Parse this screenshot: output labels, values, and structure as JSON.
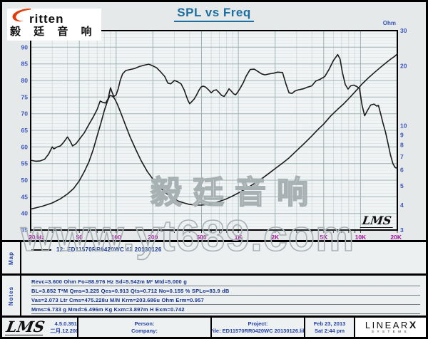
{
  "header": {
    "title": "SPL vs Freq"
  },
  "logo": {
    "brand": "ritten",
    "chinese": "毅 廷 音 响",
    "swoosh_color": "#e03c0c"
  },
  "watermarks": {
    "center": "毅廷音响",
    "bottom": "www.yt689.com"
  },
  "chart_area": {
    "lms_logo": "LMS"
  },
  "map": {
    "label": "Map",
    "legend": "12:  ED11570RR0420WC #2 20130126"
  },
  "notes": {
    "label": "Notes",
    "lines": [
      "Revc=3.600 Ohm  Fo=88.976 Hz  Sd=5.542m M²  Mtd=5.000 g",
      "BL=3.852 T*M  Qms=3.225  Qes=0.913  Qts=0.712  No=0.155 %  SPLo=83.9 dB",
      "Vas=2.073 Ltr  Cms=475.228u M/N  Krm=203.686u Ohm  Erm=0.957",
      "Mms=6.733 g  Mmd=6.496m Kg  Kxm=3.897m H  Exm=0.742"
    ]
  },
  "footer": {
    "lms_logo": "LMS",
    "version": "4.5.0.351",
    "date": "二月.12.2005",
    "person_label": "Person:",
    "company_label": "Company:",
    "project_label": "Project:",
    "file_line": "File: ED11570RR0420WC 20130126.lib",
    "date_line1": "Feb 23, 2013",
    "date_line2": "Sat  2:44 pm",
    "linearx": {
      "main": "LINEAR",
      "x": "X",
      "sub": "SYSTEMS"
    }
  },
  "colors": {
    "title": "#1d6f9f",
    "axis_left_labels": "#3a55bd",
    "axis_x_labels": "#a611a0",
    "notes_text": "#16328f",
    "grid_major": "#9fb2b2",
    "grid_minor": "#d7dfdf",
    "curve": "#1c1c1c",
    "watermark": "#a7b1b3"
  },
  "chart_data": {
    "type": "line",
    "title": "SPL vs Freq",
    "grid": true,
    "x_axis": {
      "scale": "log",
      "min": 20,
      "max": 20000,
      "ticks": [
        {
          "f": 20,
          "label": "20 Hz"
        },
        {
          "f": 50,
          "label": "50"
        },
        {
          "f": 100,
          "label": "100"
        },
        {
          "f": 200,
          "label": "200"
        },
        {
          "f": 500,
          "label": "500"
        },
        {
          "f": 1000,
          "label": "1K"
        },
        {
          "f": 2000,
          "label": "2K"
        },
        {
          "f": 5000,
          "label": "5K"
        },
        {
          "f": 10000,
          "label": "10K"
        },
        {
          "f": 20000,
          "label": "20K"
        }
      ],
      "minor": [
        30,
        40,
        60,
        70,
        80,
        90,
        300,
        400,
        600,
        700,
        800,
        900,
        3000,
        4000,
        6000,
        7000,
        8000,
        9000
      ]
    },
    "y_left": {
      "label": "dBSPL",
      "scale": "linear",
      "min": 35,
      "max": 95,
      "major_step": 5,
      "minor_step": 1,
      "tick_labels": [
        90,
        85,
        80,
        75,
        70,
        65,
        60,
        55,
        50,
        45,
        40,
        35
      ]
    },
    "y_right": {
      "label": "Ohm",
      "scale": "log",
      "min": 3,
      "max": 30,
      "tick_labels": [
        30,
        20,
        10,
        9,
        8,
        7,
        6,
        5,
        4,
        3
      ]
    },
    "series": [
      {
        "name": "SPL",
        "axis": "left",
        "unit": "dBSPL",
        "points": [
          [
            20,
            56.0
          ],
          [
            22,
            55.7
          ],
          [
            24,
            55.8
          ],
          [
            26,
            56.3
          ],
          [
            28,
            57.8
          ],
          [
            30,
            60.0
          ],
          [
            31,
            59.4
          ],
          [
            33,
            60.0
          ],
          [
            35,
            60.3
          ],
          [
            37,
            61.3
          ],
          [
            40,
            63.0
          ],
          [
            42,
            61.8
          ],
          [
            44,
            60.3
          ],
          [
            47,
            61.0
          ],
          [
            50,
            62.3
          ],
          [
            55,
            64.3
          ],
          [
            60,
            66.8
          ],
          [
            65,
            69.0
          ],
          [
            70,
            71.3
          ],
          [
            74,
            73.8
          ],
          [
            78,
            73.4
          ],
          [
            82,
            73.2
          ],
          [
            86,
            74.5
          ],
          [
            90,
            77.8
          ],
          [
            93,
            76.3
          ],
          [
            96,
            75.2
          ],
          [
            100,
            75.7
          ],
          [
            104,
            77.5
          ],
          [
            108,
            80.0
          ],
          [
            113,
            82.0
          ],
          [
            120,
            83.0
          ],
          [
            130,
            83.3
          ],
          [
            142,
            83.6
          ],
          [
            155,
            84.2
          ],
          [
            170,
            84.6
          ],
          [
            185,
            84.9
          ],
          [
            200,
            84.4
          ],
          [
            215,
            83.8
          ],
          [
            230,
            82.7
          ],
          [
            250,
            81.2
          ],
          [
            265,
            79.2
          ],
          [
            280,
            79.0
          ],
          [
            300,
            80.0
          ],
          [
            320,
            79.6
          ],
          [
            340,
            79.0
          ],
          [
            360,
            77.2
          ],
          [
            385,
            74.2
          ],
          [
            400,
            73.0
          ],
          [
            415,
            73.6
          ],
          [
            435,
            74.4
          ],
          [
            455,
            75.6
          ],
          [
            475,
            77.0
          ],
          [
            495,
            78.0
          ],
          [
            515,
            78.3
          ],
          [
            540,
            78.0
          ],
          [
            570,
            77.2
          ],
          [
            600,
            76.3
          ],
          [
            630,
            77.0
          ],
          [
            660,
            77.2
          ],
          [
            695,
            76.4
          ],
          [
            730,
            75.5
          ],
          [
            765,
            75.2
          ],
          [
            800,
            76.2
          ],
          [
            840,
            77.5
          ],
          [
            880,
            76.7
          ],
          [
            915,
            76.0
          ],
          [
            950,
            75.7
          ],
          [
            990,
            76.5
          ],
          [
            1040,
            77.8
          ],
          [
            1100,
            79.4
          ],
          [
            1160,
            81.3
          ],
          [
            1250,
            83.3
          ],
          [
            1350,
            83.4
          ],
          [
            1450,
            82.7
          ],
          [
            1550,
            82.0
          ],
          [
            1650,
            81.7
          ],
          [
            1800,
            82.0
          ],
          [
            1950,
            82.2
          ],
          [
            2100,
            82.5
          ],
          [
            2300,
            82.4
          ],
          [
            2450,
            79.0
          ],
          [
            2600,
            76.3
          ],
          [
            2750,
            76.1
          ],
          [
            2900,
            76.8
          ],
          [
            3100,
            77.2
          ],
          [
            3400,
            77.5
          ],
          [
            3700,
            78.0
          ],
          [
            4000,
            78.4
          ],
          [
            4300,
            79.8
          ],
          [
            4700,
            80.4
          ],
          [
            5100,
            81.2
          ],
          [
            5500,
            83.2
          ],
          [
            6000,
            86.0
          ],
          [
            6500,
            87.8
          ],
          [
            6800,
            86.5
          ],
          [
            7100,
            82.5
          ],
          [
            7500,
            78.8
          ],
          [
            7900,
            77.4
          ],
          [
            8300,
            78.4
          ],
          [
            8800,
            78.6
          ],
          [
            9300,
            78.2
          ],
          [
            9800,
            77.6
          ],
          [
            10300,
            72.5
          ],
          [
            10800,
            69.4
          ],
          [
            11400,
            71.0
          ],
          [
            12100,
            72.6
          ],
          [
            12900,
            72.9
          ],
          [
            13500,
            72.3
          ],
          [
            14000,
            72.5
          ],
          [
            14600,
            70.0
          ],
          [
            15300,
            67.0
          ],
          [
            16000,
            64.5
          ],
          [
            16800,
            61.0
          ],
          [
            17600,
            57.5
          ],
          [
            18400,
            55.0
          ],
          [
            19200,
            53.8
          ],
          [
            20000,
            53.6
          ]
        ]
      },
      {
        "name": "Impedance",
        "axis": "right",
        "unit": "Ohm",
        "points": [
          [
            20,
            3.82
          ],
          [
            25,
            3.95
          ],
          [
            30,
            4.1
          ],
          [
            35,
            4.3
          ],
          [
            40,
            4.55
          ],
          [
            45,
            4.85
          ],
          [
            50,
            5.3
          ],
          [
            55,
            5.9
          ],
          [
            60,
            6.6
          ],
          [
            65,
            7.6
          ],
          [
            70,
            8.9
          ],
          [
            75,
            10.3
          ],
          [
            80,
            11.9
          ],
          [
            85,
            13.3
          ],
          [
            89,
            14.2
          ],
          [
            93,
            14.1
          ],
          [
            97,
            13.7
          ],
          [
            102,
            12.9
          ],
          [
            110,
            11.5
          ],
          [
            120,
            10.0
          ],
          [
            130,
            8.8
          ],
          [
            145,
            7.6
          ],
          [
            160,
            6.7
          ],
          [
            180,
            5.9
          ],
          [
            200,
            5.4
          ],
          [
            225,
            4.95
          ],
          [
            250,
            4.65
          ],
          [
            280,
            4.4
          ],
          [
            320,
            4.2
          ],
          [
            360,
            4.1
          ],
          [
            400,
            4.03
          ],
          [
            450,
            4.0
          ],
          [
            500,
            4.0
          ],
          [
            560,
            4.03
          ],
          [
            630,
            4.1
          ],
          [
            700,
            4.18
          ],
          [
            800,
            4.3
          ],
          [
            900,
            4.45
          ],
          [
            1000,
            4.6
          ],
          [
            1200,
            4.9
          ],
          [
            1400,
            5.2
          ],
          [
            1600,
            5.5
          ],
          [
            1800,
            5.8
          ],
          [
            2000,
            6.1
          ],
          [
            2300,
            6.5
          ],
          [
            2600,
            6.9
          ],
          [
            3000,
            7.5
          ],
          [
            3500,
            8.2
          ],
          [
            4000,
            8.9
          ],
          [
            4500,
            9.6
          ],
          [
            5000,
            10.2
          ],
          [
            5700,
            11.2
          ],
          [
            6500,
            12.1
          ],
          [
            7300,
            12.9
          ],
          [
            8200,
            13.9
          ],
          [
            9200,
            15.0
          ],
          [
            10300,
            16.2
          ],
          [
            11500,
            17.3
          ],
          [
            13000,
            18.5
          ],
          [
            14500,
            19.6
          ],
          [
            16000,
            20.6
          ],
          [
            17500,
            21.5
          ],
          [
            19000,
            22.3
          ],
          [
            20000,
            22.9
          ]
        ]
      }
    ]
  }
}
